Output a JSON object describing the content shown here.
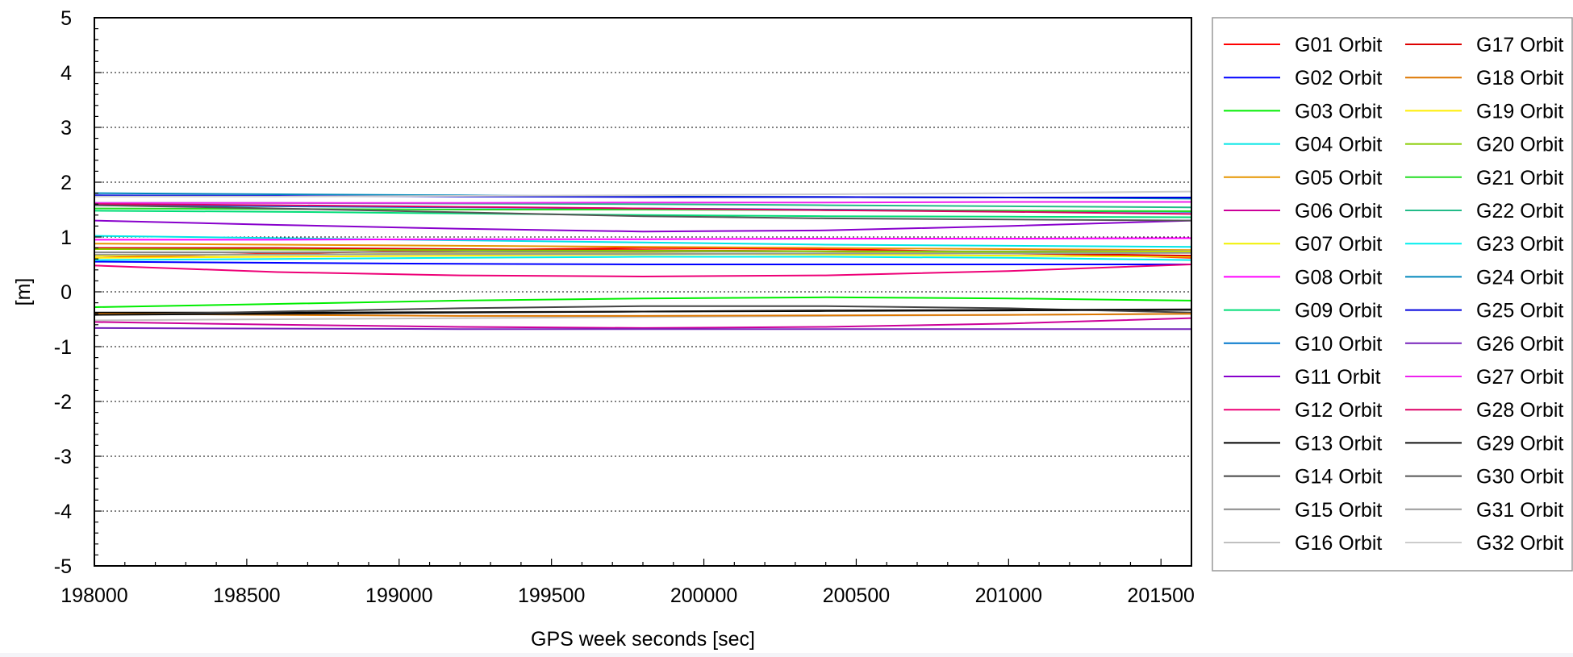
{
  "chart_data": {
    "type": "line",
    "title": "",
    "xlabel": "GPS week seconds [sec]",
    "ylabel": "[m]",
    "xlim": [
      198000,
      201600
    ],
    "ylim": [
      -5,
      5
    ],
    "xticks": [
      198000,
      198500,
      199000,
      199500,
      200000,
      200500,
      201000,
      201500
    ],
    "yticks": [
      5,
      4,
      3,
      2,
      1,
      0,
      -1,
      -2,
      -3,
      -4,
      -5
    ],
    "grid": "horizontal dotted",
    "legend_position": "right",
    "x": [
      198000,
      198600,
      199200,
      199800,
      200400,
      201000,
      201600
    ],
    "series": [
      {
        "name": "G01 Orbit",
        "color": "#ff0000",
        "values": [
          0.62,
          0.7,
          0.76,
          0.8,
          0.78,
          0.72,
          0.62
        ]
      },
      {
        "name": "G02 Orbit",
        "color": "#0000ff",
        "values": [
          0.55,
          0.53,
          0.51,
          0.5,
          0.5,
          0.5,
          0.5
        ]
      },
      {
        "name": "G03 Orbit",
        "color": "#00ee00",
        "values": [
          -0.28,
          -0.22,
          -0.16,
          -0.12,
          -0.1,
          -0.12,
          -0.16
        ]
      },
      {
        "name": "G04 Orbit",
        "color": "#00e5e5",
        "values": [
          1.02,
          0.98,
          0.94,
          0.9,
          0.86,
          0.84,
          0.82
        ]
      },
      {
        "name": "G05 Orbit",
        "color": "#e69500",
        "values": [
          0.88,
          0.86,
          0.84,
          0.82,
          0.8,
          0.78,
          0.76
        ]
      },
      {
        "name": "G06 Orbit",
        "color": "#cc0099",
        "values": [
          -0.55,
          -0.6,
          -0.64,
          -0.66,
          -0.64,
          -0.58,
          -0.48
        ]
      },
      {
        "name": "G07 Orbit",
        "color": "#f0f000",
        "values": [
          0.66,
          0.68,
          0.7,
          0.7,
          0.68,
          0.66,
          0.64
        ]
      },
      {
        "name": "G08 Orbit",
        "color": "#ff00ff",
        "values": [
          0.95,
          0.95,
          0.96,
          0.96,
          0.97,
          0.97,
          0.98
        ]
      },
      {
        "name": "G09 Orbit",
        "color": "#00dd77",
        "values": [
          1.48,
          1.46,
          1.43,
          1.4,
          1.38,
          1.37,
          1.36
        ]
      },
      {
        "name": "G10 Orbit",
        "color": "#0077cc",
        "values": [
          1.58,
          1.56,
          1.54,
          1.52,
          1.5,
          1.48,
          1.46
        ]
      },
      {
        "name": "G11 Orbit",
        "color": "#8800cc",
        "values": [
          1.3,
          1.22,
          1.15,
          1.1,
          1.12,
          1.2,
          1.3
        ]
      },
      {
        "name": "G12 Orbit",
        "color": "#ee0077",
        "values": [
          0.48,
          0.36,
          0.3,
          0.28,
          0.3,
          0.38,
          0.5
        ]
      },
      {
        "name": "G13 Orbit",
        "color": "#000000",
        "values": [
          -0.38,
          -0.38,
          -0.37,
          -0.36,
          -0.35,
          -0.34,
          -0.33
        ]
      },
      {
        "name": "G14 Orbit",
        "color": "#444444",
        "values": [
          -0.42,
          -0.36,
          -0.3,
          -0.26,
          -0.26,
          -0.3,
          -0.38
        ]
      },
      {
        "name": "G15 Orbit",
        "color": "#888888",
        "values": [
          0.72,
          0.72,
          0.73,
          0.73,
          0.74,
          0.74,
          0.75
        ]
      },
      {
        "name": "G16 Orbit",
        "color": "#c0c0c0",
        "values": [
          -0.52,
          -0.5,
          -0.48,
          -0.46,
          -0.44,
          -0.42,
          -0.4
        ]
      },
      {
        "name": "G17 Orbit",
        "color": "#dd0000",
        "values": [
          0.8,
          0.8,
          0.78,
          0.76,
          0.74,
          0.7,
          0.66
        ]
      },
      {
        "name": "G18 Orbit",
        "color": "#dd7700",
        "values": [
          -0.4,
          -0.42,
          -0.44,
          -0.44,
          -0.43,
          -0.42,
          -0.4
        ]
      },
      {
        "name": "G19 Orbit",
        "color": "#ffee00",
        "values": [
          0.62,
          0.64,
          0.66,
          0.68,
          0.7,
          0.72,
          0.74
        ]
      },
      {
        "name": "G20 Orbit",
        "color": "#88cc00",
        "values": [
          0.78,
          0.77,
          0.76,
          0.75,
          0.74,
          0.73,
          0.72
        ]
      },
      {
        "name": "G21 Orbit",
        "color": "#22dd22",
        "values": [
          1.52,
          1.51,
          1.5,
          1.5,
          1.49,
          1.48,
          1.47
        ]
      },
      {
        "name": "G22 Orbit",
        "color": "#22bb88",
        "values": [
          1.62,
          1.62,
          1.61,
          1.6,
          1.58,
          1.56,
          1.54
        ]
      },
      {
        "name": "G23 Orbit",
        "color": "#00eeee",
        "values": [
          0.58,
          0.6,
          0.62,
          0.64,
          0.64,
          0.62,
          0.58
        ]
      },
      {
        "name": "G24 Orbit",
        "color": "#0088bb",
        "values": [
          1.8,
          1.78,
          1.76,
          1.74,
          1.73,
          1.72,
          1.7
        ]
      },
      {
        "name": "G25 Orbit",
        "color": "#0000dd",
        "values": [
          1.76,
          1.75,
          1.74,
          1.73,
          1.73,
          1.72,
          1.72
        ]
      },
      {
        "name": "G26 Orbit",
        "color": "#7722bb",
        "values": [
          -0.66,
          -0.67,
          -0.68,
          -0.68,
          -0.68,
          -0.68,
          -0.68
        ]
      },
      {
        "name": "G27 Orbit",
        "color": "#ee22ee",
        "values": [
          1.62,
          1.62,
          1.62,
          1.63,
          1.63,
          1.64,
          1.64
        ]
      },
      {
        "name": "G28 Orbit",
        "color": "#dd0066",
        "values": [
          1.6,
          1.58,
          1.55,
          1.52,
          1.49,
          1.46,
          1.42
        ]
      },
      {
        "name": "G29 Orbit",
        "color": "#111111",
        "values": [
          -0.42,
          -0.4,
          -0.38,
          -0.36,
          -0.34,
          -0.33,
          -0.32
        ]
      },
      {
        "name": "G30 Orbit",
        "color": "#555555",
        "values": [
          1.58,
          1.52,
          1.45,
          1.38,
          1.34,
          1.32,
          1.3
        ]
      },
      {
        "name": "G31 Orbit",
        "color": "#999999",
        "values": [
          0.68,
          0.68,
          0.69,
          0.69,
          0.7,
          0.7,
          0.71
        ]
      },
      {
        "name": "G32 Orbit",
        "color": "#cccccc",
        "values": [
          1.74,
          1.74,
          1.75,
          1.76,
          1.78,
          1.8,
          1.83
        ]
      }
    ]
  }
}
